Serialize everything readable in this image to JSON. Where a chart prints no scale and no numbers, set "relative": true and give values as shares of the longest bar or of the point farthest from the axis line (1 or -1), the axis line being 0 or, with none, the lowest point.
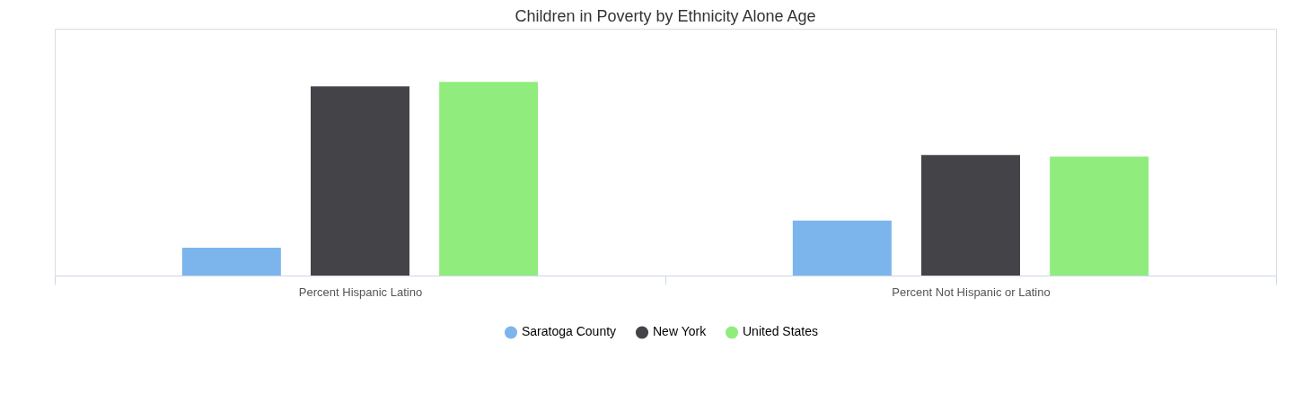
{
  "chart_data": {
    "type": "bar",
    "title": "Children in Poverty by Ethnicity Alone Age",
    "categories": [
      "Percent Hispanic Latino",
      "Percent Not Hispanic or Latino"
    ],
    "relative": true,
    "legend": "bottom",
    "series": [
      {
        "name": "Saratoga County",
        "color": "#7cb5ec",
        "values": [
          0.144,
          0.284
        ]
      },
      {
        "name": "New York",
        "color": "#434348",
        "values": [
          0.977,
          0.623
        ]
      },
      {
        "name": "United States",
        "color": "#90ed7d",
        "values": [
          1,
          0.614
        ]
      }
    ]
  }
}
